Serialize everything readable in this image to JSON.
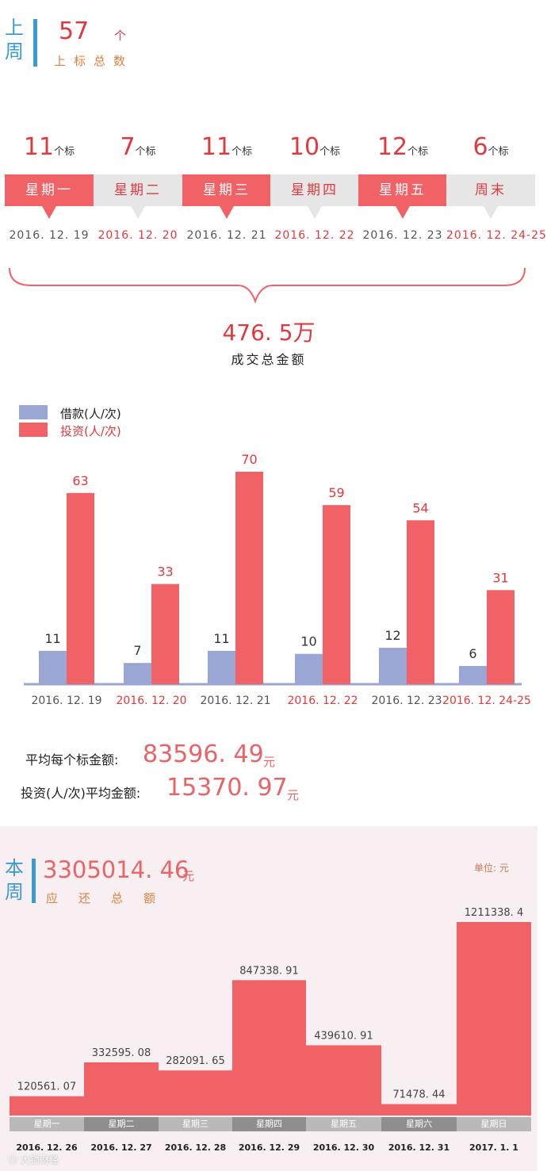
{
  "last_week": {
    "tag": "上周",
    "total_count": "57",
    "total_unit": "个",
    "total_caption": "上标总数",
    "days": [
      {
        "count": "11",
        "unit": "个标",
        "day": "星期一",
        "date": "2016. 12. 19"
      },
      {
        "count": "7",
        "unit": "个标",
        "day": "星期二",
        "date": "2016. 12. 20"
      },
      {
        "count": "11",
        "unit": "个标",
        "day": "星期三",
        "date": "2016. 12. 21"
      },
      {
        "count": "10",
        "unit": "个标",
        "day": "星期四",
        "date": "2016. 12. 22"
      },
      {
        "count": "12",
        "unit": "个标",
        "day": "星期五",
        "date": "2016. 12. 23"
      },
      {
        "count": "6",
        "unit": "个标",
        "day": "周末",
        "date": "2016. 12. 24-25"
      }
    ],
    "turnover_value": "476. 5万",
    "turnover_caption": "成交总金额",
    "avg_per_bid_label": "平均每个标金额:",
    "avg_per_bid_value": "83596. 49",
    "avg_per_bid_unit": "元",
    "avg_invest_label": "投资(人/次)平均金额:",
    "avg_invest_value": "15370. 97",
    "avg_invest_unit": "元"
  },
  "this_week": {
    "tag": "本周",
    "total_value": "3305014. 46",
    "total_unit": "元",
    "total_caption": "应还总额",
    "unit_label": "单位: 元"
  },
  "colors": {
    "red": "#f06266",
    "blue": "#9aa7d4",
    "accent_text": "#e0393e",
    "tab_gray": "#e6e6e6",
    "bar_light": "#b9b9b9",
    "bar_dark": "#8e8e8e"
  },
  "chart_data": [
    {
      "type": "bar",
      "categories": [
        "2016. 12. 19",
        "2016. 12. 20",
        "2016. 12. 21",
        "2016. 12. 22",
        "2016. 12. 23",
        "2016. 12. 24-25"
      ],
      "series": [
        {
          "name": "借款(人/次)",
          "values": [
            11,
            7,
            11,
            10,
            12,
            6
          ]
        },
        {
          "name": "投资(人/次)",
          "values": [
            63,
            33,
            70,
            59,
            54,
            31
          ]
        }
      ],
      "legend_position": "top-left",
      "ylim": [
        0,
        70
      ]
    },
    {
      "type": "bar",
      "categories": [
        "星期一",
        "星期二",
        "星期三",
        "星期四",
        "星期五",
        "星期六",
        "星期日"
      ],
      "dates": [
        "2016. 12. 26",
        "2016. 12. 27",
        "2016. 12. 28",
        "2016. 12. 29",
        "2016. 12. 30",
        "2016. 12. 31",
        "2017. 1. 1"
      ],
      "values": [
        120561.07,
        332595.08,
        282091.65,
        847338.91,
        439610.91,
        71478.44,
        1211338.4
      ],
      "labels": [
        "120561. 07",
        "332595. 08",
        "282091. 65",
        "847338. 91",
        "439610. 91",
        "71478. 44",
        "1211338. 4"
      ],
      "ylim": [
        0,
        1211338.4
      ]
    }
  ]
}
